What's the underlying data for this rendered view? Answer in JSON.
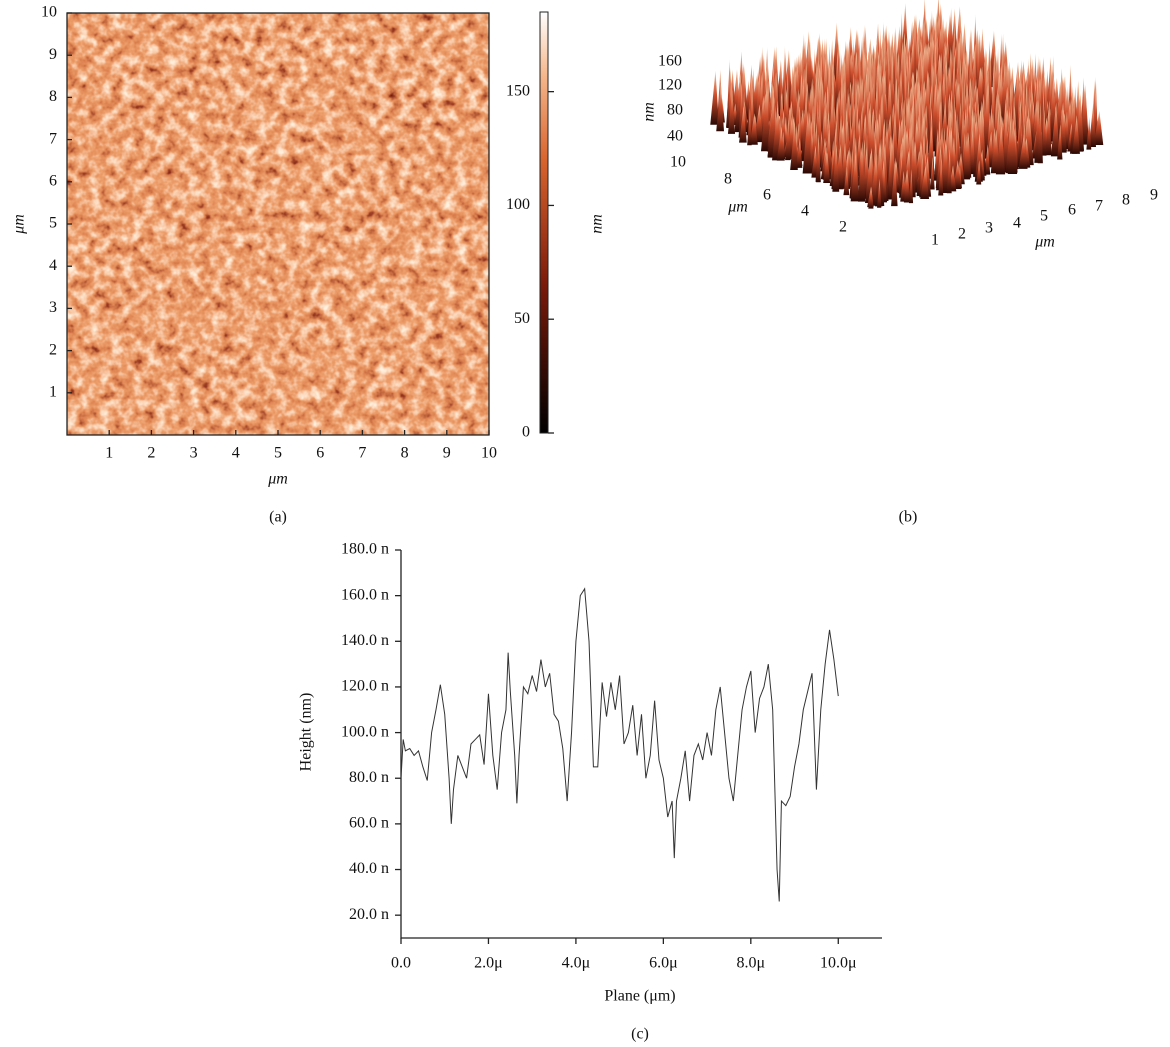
{
  "chart_data": [
    {
      "type": "heatmap",
      "caption": "(a)",
      "xlabel": "μm",
      "ylabel": "μm",
      "xlim": [
        0,
        10
      ],
      "ylim": [
        0,
        10
      ],
      "xticks": [
        1,
        2,
        3,
        4,
        5,
        6,
        7,
        8,
        9,
        10
      ],
      "yticks": [
        1,
        2,
        3,
        4,
        5,
        6,
        7,
        8,
        9,
        10
      ],
      "colorbar": {
        "label": "nm",
        "lim": [
          0,
          185
        ],
        "ticks": [
          0,
          50,
          100,
          150
        ]
      }
    },
    {
      "type": "surface3d",
      "caption": "(b)",
      "zlabel": "nm",
      "ylabel": "μm",
      "xlabel": "μm",
      "zticks": [
        160,
        120,
        80,
        40,
        10
      ],
      "yticks": [
        8,
        6,
        4,
        2
      ],
      "xticks": [
        1,
        2,
        3,
        4,
        5,
        6,
        7,
        8,
        9
      ]
    },
    {
      "type": "line",
      "caption": "(c)",
      "xlabel": "Plane (μm)",
      "ylabel": "Height (nm)",
      "color": "#333333",
      "xlim": [
        0,
        11
      ],
      "ylim": [
        10,
        180
      ],
      "xticks": [
        {
          "value": 0,
          "label": "0.0"
        },
        {
          "value": 2,
          "label": "2.0μ"
        },
        {
          "value": 4,
          "label": "4.0μ"
        },
        {
          "value": 6,
          "label": "6.0μ"
        },
        {
          "value": 8,
          "label": "8.0μ"
        },
        {
          "value": 10,
          "label": "10.0μ"
        }
      ],
      "yticks": [
        {
          "value": 20,
          "label": "20.0 n"
        },
        {
          "value": 40,
          "label": "40.0 n"
        },
        {
          "value": 60,
          "label": "60.0 n"
        },
        {
          "value": 80,
          "label": "80.0 n"
        },
        {
          "value": 100,
          "label": "100.0 n"
        },
        {
          "value": 120,
          "label": "120.0 n"
        },
        {
          "value": 140,
          "label": "140.0 n"
        },
        {
          "value": 160,
          "label": "160.0 n"
        },
        {
          "value": 180,
          "label": "180.0 n"
        }
      ],
      "x": [
        0,
        0.05,
        0.1,
        0.2,
        0.3,
        0.4,
        0.5,
        0.6,
        0.7,
        0.8,
        0.9,
        1.0,
        1.1,
        1.15,
        1.2,
        1.3,
        1.4,
        1.5,
        1.6,
        1.7,
        1.8,
        1.9,
        2.0,
        2.1,
        2.2,
        2.3,
        2.4,
        2.45,
        2.5,
        2.6,
        2.65,
        2.7,
        2.8,
        2.9,
        3.0,
        3.1,
        3.2,
        3.3,
        3.4,
        3.5,
        3.6,
        3.7,
        3.8,
        3.9,
        4.0,
        4.1,
        4.2,
        4.3,
        4.4,
        4.5,
        4.6,
        4.7,
        4.8,
        4.9,
        5.0,
        5.1,
        5.2,
        5.3,
        5.4,
        5.5,
        5.6,
        5.7,
        5.8,
        5.9,
        6.0,
        6.1,
        6.2,
        6.25,
        6.3,
        6.4,
        6.5,
        6.6,
        6.7,
        6.8,
        6.9,
        7.0,
        7.1,
        7.2,
        7.3,
        7.4,
        7.5,
        7.6,
        7.7,
        7.8,
        7.9,
        8.0,
        8.1,
        8.2,
        8.3,
        8.4,
        8.5,
        8.6,
        8.65,
        8.7,
        8.8,
        8.9,
        9.0,
        9.1,
        9.2,
        9.3,
        9.4,
        9.5,
        9.6,
        9.7,
        9.8,
        9.9,
        10.0
      ],
      "values": [
        80,
        97,
        92,
        93,
        90,
        92,
        85,
        79,
        100,
        110,
        121,
        108,
        80,
        60,
        75,
        90,
        85,
        80,
        95,
        97,
        99,
        86,
        117,
        90,
        75,
        100,
        110,
        135,
        118,
        90,
        69,
        90,
        120,
        117,
        125,
        118,
        132,
        120,
        126,
        108,
        105,
        93,
        70,
        100,
        140,
        160,
        163,
        140,
        85,
        85,
        122,
        107,
        122,
        110,
        125,
        95,
        100,
        112,
        90,
        108,
        80,
        90,
        114,
        88,
        80,
        63,
        70,
        45,
        70,
        80,
        92,
        70,
        90,
        95,
        88,
        100,
        90,
        110,
        120,
        100,
        80,
        70,
        90,
        110,
        120,
        127,
        100,
        115,
        120,
        130,
        110,
        40,
        26,
        70,
        68,
        72,
        85,
        95,
        110,
        118,
        126,
        75,
        110,
        130,
        145,
        132,
        116
      ]
    }
  ]
}
